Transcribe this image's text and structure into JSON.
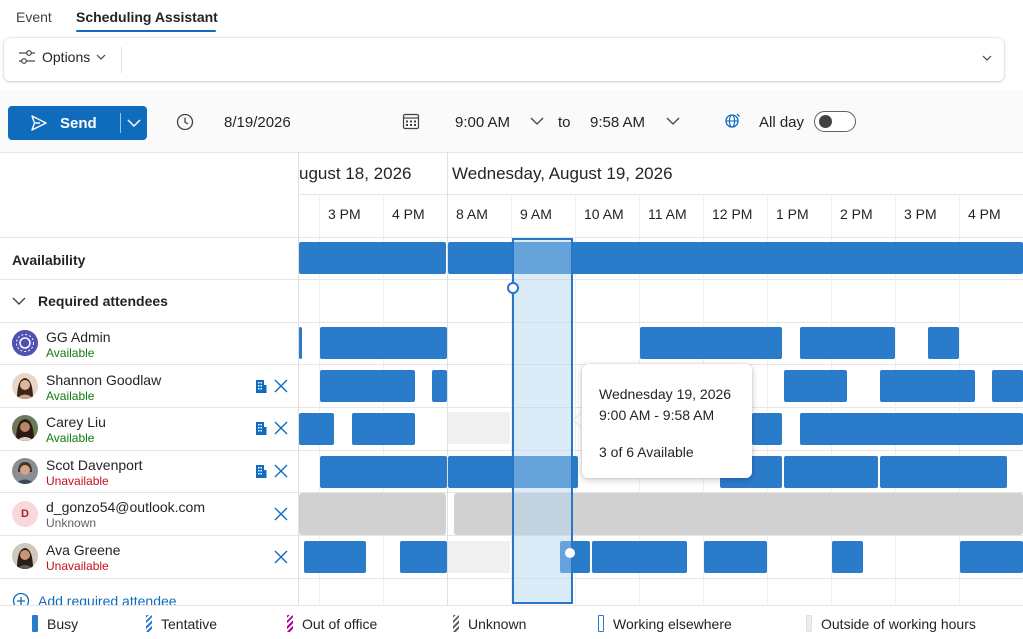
{
  "tabs": [
    {
      "label": "Event",
      "active": false
    },
    {
      "label": "Scheduling Assistant",
      "active": true
    }
  ],
  "options": {
    "label": "Options"
  },
  "toolbar": {
    "send_label": "Send",
    "date": "8/19/2026",
    "start_time": "9:00 AM",
    "to_label": "to",
    "end_time": "9:58 AM",
    "all_day_label": "All day",
    "all_day_on": false
  },
  "calendar": {
    "dates": [
      "ugust 18, 2026",
      "Wednesday, August 19, 2026"
    ],
    "hours": [
      "3 PM",
      "4 PM",
      "8 AM",
      "9 AM",
      "10 AM",
      "11 AM",
      "12 PM",
      "1 PM",
      "2 PM",
      "3 PM",
      "4 PM"
    ]
  },
  "rows": {
    "availability": "Availability",
    "required_attendees": "Required attendees"
  },
  "attendees": [
    {
      "name": "GG Admin",
      "status": "Available",
      "status_type": "available",
      "room": false,
      "removable": false
    },
    {
      "name": "Shannon Goodlaw",
      "status": "Available",
      "status_type": "available",
      "room": true,
      "removable": true
    },
    {
      "name": "Carey Liu",
      "status": "Available",
      "status_type": "available",
      "room": true,
      "removable": true
    },
    {
      "name": "Scot Davenport",
      "status": "Unavailable",
      "status_type": "unavailable",
      "room": true,
      "removable": true
    },
    {
      "name": "d_gonzo54@outlook.com",
      "status": "Unknown",
      "status_type": "unknown",
      "initial": "D",
      "room": false,
      "removable": true
    },
    {
      "name": "Ava Greene",
      "status": "Unavailable",
      "status_type": "unavailable",
      "room": false,
      "removable": true
    }
  ],
  "add_attendee": "Add required attendee",
  "tooltip": {
    "date": "Wednesday 19, 2026",
    "time": "9:00 AM - 9:58 AM",
    "availability": "3 of 6 Available"
  },
  "legend": [
    {
      "label": "Busy",
      "color": "#2b7bcb"
    },
    {
      "label": "Tentative",
      "color": "#2b7bcb"
    },
    {
      "label": "Out of office",
      "color": "#b4009e"
    },
    {
      "label": "Unknown",
      "color": "#616161"
    },
    {
      "label": "Working elsewhere",
      "color": "#2b7bcb"
    },
    {
      "label": "Outside of working hours",
      "color": "#e0e0e0"
    }
  ]
}
